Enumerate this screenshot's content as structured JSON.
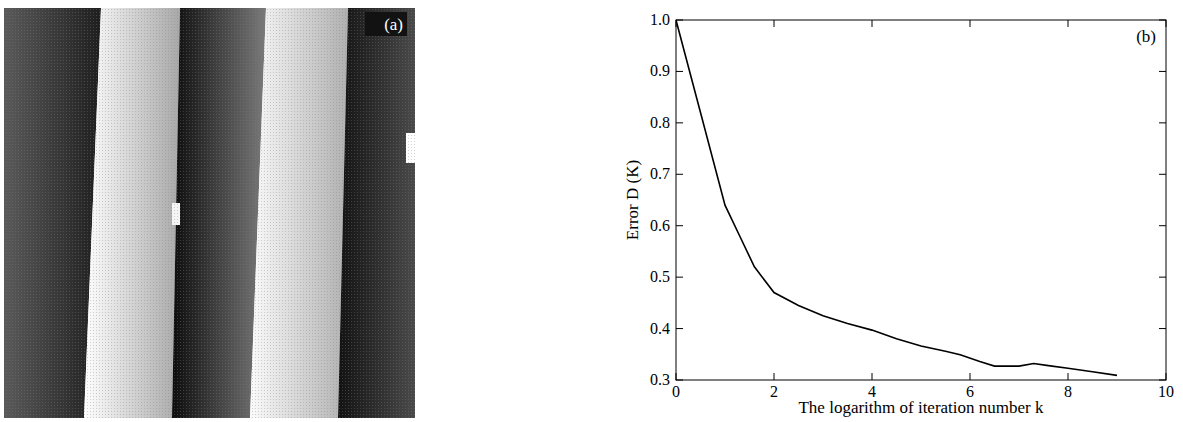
{
  "chart_data": [
    {
      "type": "image",
      "panel_label": "(a)"
    },
    {
      "type": "line",
      "panel_label": "(b)",
      "x_label": "The logarithm of iteration number k",
      "y_label": "Error D (K)",
      "x": [
        0,
        0.5,
        1,
        1.3,
        1.6,
        2,
        2.5,
        3,
        3.5,
        4,
        4.5,
        5,
        5.5,
        5.8,
        6.2,
        6.5,
        7,
        7.3,
        7.6,
        8,
        8.5,
        9
      ],
      "values": [
        1.0,
        0.82,
        0.64,
        0.58,
        0.52,
        0.47,
        0.445,
        0.425,
        0.41,
        0.397,
        0.38,
        0.366,
        0.356,
        0.349,
        0.336,
        0.327,
        0.327,
        0.332,
        0.328,
        0.323,
        0.316,
        0.309
      ],
      "color": "#000000",
      "xlim": [
        0,
        10
      ],
      "xticks": [
        0,
        2,
        4,
        6,
        8,
        10
      ],
      "ylim": [
        0.3,
        1.0
      ],
      "yticks": [
        0.3,
        0.4,
        0.5,
        0.6,
        0.7,
        0.8,
        0.9,
        {
          "value": 1.0,
          "label": "1.0"
        }
      ],
      "grid": false
    }
  ]
}
